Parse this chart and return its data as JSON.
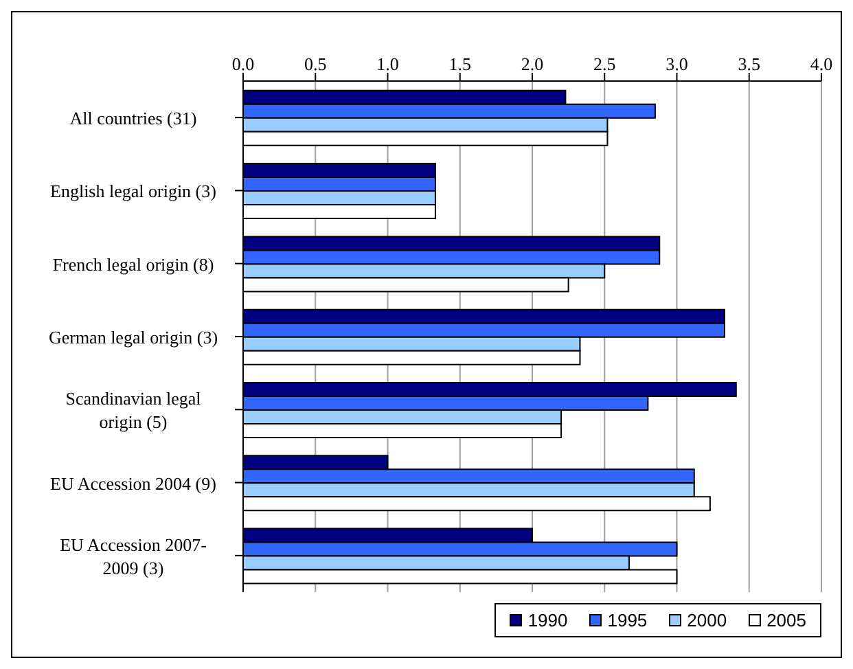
{
  "chart_data": {
    "type": "bar",
    "orientation": "horizontal",
    "categories": [
      "All countries (31)",
      "English legal origin (3)",
      "French legal origin (8)",
      "German legal origin (3)",
      "Scandinavian legal origin (5)",
      "EU Accession 2004 (9)",
      "EU Accession 2007-2009 (3)"
    ],
    "series": [
      {
        "name": "1990",
        "color": "#000080",
        "values": [
          2.23,
          1.33,
          2.88,
          3.33,
          3.41,
          1.0,
          2.0
        ]
      },
      {
        "name": "1995",
        "color": "#3366ff",
        "values": [
          2.85,
          1.33,
          2.88,
          3.33,
          2.8,
          3.12,
          3.0
        ]
      },
      {
        "name": "2000",
        "color": "#99ccff",
        "values": [
          2.52,
          1.33,
          2.5,
          2.33,
          2.2,
          3.12,
          2.67
        ]
      },
      {
        "name": "2005",
        "color": "#ffffff",
        "values": [
          2.52,
          1.33,
          2.25,
          2.33,
          2.2,
          3.23,
          3.0
        ]
      }
    ],
    "xlim": [
      0,
      4
    ],
    "xticks": [
      {
        "value": 0,
        "label": "0.0"
      },
      {
        "value": 0.5,
        "label": "0.5"
      },
      {
        "value": 1,
        "label": "1.0"
      },
      {
        "value": 1.5,
        "label": "1.5"
      },
      {
        "value": 2,
        "label": "2.0"
      },
      {
        "value": 2.5,
        "label": "2.5"
      },
      {
        "value": 3,
        "label": "3.0"
      },
      {
        "value": 3.5,
        "label": "3.5"
      },
      {
        "value": 4,
        "label": "4.0"
      }
    ],
    "grid": "x",
    "legend": "bottom right"
  }
}
